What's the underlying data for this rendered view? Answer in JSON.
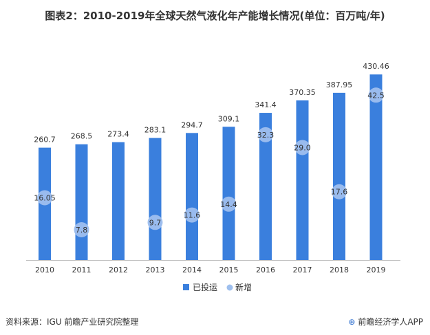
{
  "title": "图表2：2010-2019年全球天然气液化年产能增长情况(单位：百万吨/年)",
  "source": "资料来源：IGU 前瞻产业研究院整理",
  "brand": "前瞻经济学人APP",
  "brand_icon": "qianzhan-logo-icon",
  "colors": {
    "bar": "#3a7fdd",
    "dot": "#9ebfee",
    "text": "#333333"
  },
  "chart_data": {
    "type": "bar",
    "categories": [
      "2010",
      "2011",
      "2012",
      "2013",
      "2014",
      "2015",
      "2016",
      "2017",
      "2018",
      "2019"
    ],
    "series": [
      {
        "name": "已投运",
        "kind": "bar",
        "values": [
          260.7,
          268.5,
          273.4,
          283.1,
          294.7,
          309.1,
          341.4,
          370.35,
          387.95,
          430.46
        ],
        "labels": [
          "260.7",
          "268.5",
          "273.4",
          "283.1",
          "294.7",
          "309.1",
          "341.4",
          "370.35",
          "387.95",
          "430.46"
        ]
      },
      {
        "name": "新增",
        "kind": "dot",
        "values": [
          16.05,
          7.8,
          null,
          9.7,
          11.6,
          14.4,
          32.3,
          29.0,
          17.6,
          42.5
        ],
        "labels": [
          "16.05",
          "7.8",
          "",
          "9.7",
          "11.6",
          "14.4",
          "32.3",
          "29.0",
          "17.6",
          "42.5"
        ]
      }
    ],
    "xlabel": "",
    "ylabel": "",
    "ylim": [
      0,
      450
    ],
    "y2lim": [
      0,
      50
    ],
    "grid": false,
    "legend": "bottom"
  }
}
